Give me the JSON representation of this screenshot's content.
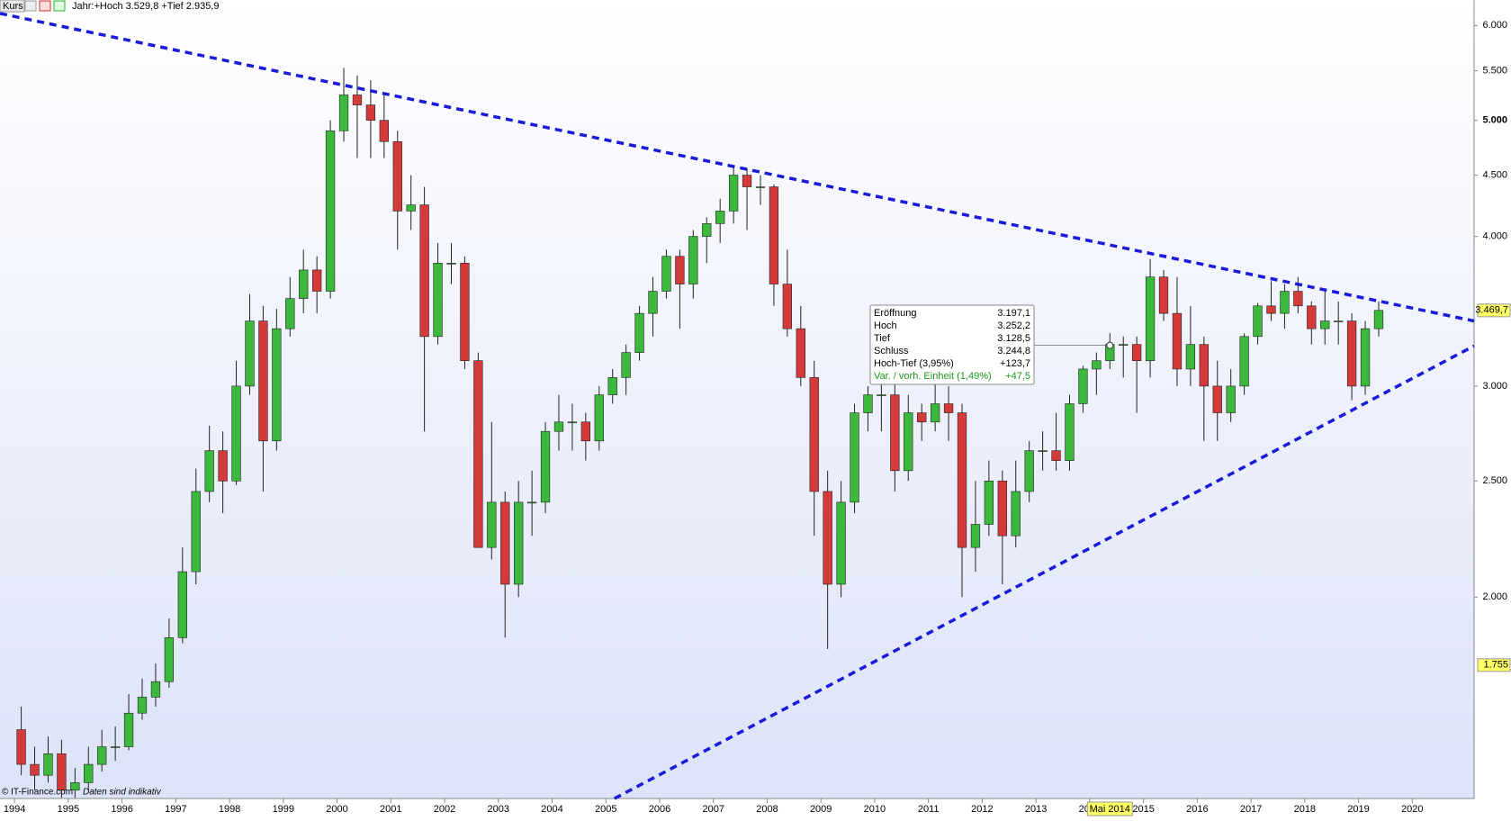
{
  "header": {
    "label": "Kurs",
    "info": "Jahr:+Hoch 3.529,8 +Tief 2.935,9"
  },
  "footer": {
    "copyright": "© IT-Finance.com",
    "note": "Daten sind indikativ"
  },
  "chart_data": {
    "type": "candlestick",
    "log_scale": true,
    "xlim": [
      1993.73,
      2021.15
    ],
    "ylim": [
      1358,
      6301
    ],
    "xticks": [
      1994,
      1995,
      1996,
      1997,
      1998,
      1999,
      2000,
      2001,
      2002,
      2003,
      2004,
      2005,
      2006,
      2007,
      2008,
      2009,
      2010,
      2011,
      2012,
      2013,
      2014,
      2015,
      2016,
      2017,
      2018,
      2019,
      2020
    ],
    "yticks": [
      {
        "value": 2000,
        "label": "2.000"
      },
      {
        "value": 2500,
        "label": "2.500"
      },
      {
        "value": 3000,
        "label": "3.000"
      },
      {
        "value": 4000,
        "label": "4.000"
      },
      {
        "value": 4500,
        "label": "4.500"
      },
      {
        "value": 5000,
        "label": "5.000"
      },
      {
        "value": 5500,
        "label": "5.500"
      },
      {
        "value": 6000,
        "label": "6.000"
      }
    ],
    "up_color": "#3cb83c",
    "down_color": "#d43a3a",
    "x": [
      1994.125,
      1994.375,
      1994.625,
      1994.875,
      1995.125,
      1995.375,
      1995.625,
      1995.875,
      1996.125,
      1996.375,
      1996.625,
      1996.875,
      1997.125,
      1997.375,
      1997.625,
      1997.875,
      1998.125,
      1998.375,
      1998.625,
      1998.875,
      1999.125,
      1999.375,
      1999.625,
      1999.875,
      2000.125,
      2000.375,
      2000.625,
      2000.875,
      2001.125,
      2001.375,
      2001.625,
      2001.875,
      2002.125,
      2002.375,
      2002.625,
      2002.875,
      2003.125,
      2003.375,
      2003.625,
      2003.875,
      2004.125,
      2004.375,
      2004.625,
      2004.875,
      2005.125,
      2005.375,
      2005.625,
      2005.875,
      2006.125,
      2006.375,
      2006.625,
      2006.875,
      2007.125,
      2007.375,
      2007.625,
      2007.875,
      2008.125,
      2008.375,
      2008.625,
      2008.875,
      2009.125,
      2009.375,
      2009.625,
      2009.875,
      2010.125,
      2010.375,
      2010.625,
      2010.875,
      2011.125,
      2011.375,
      2011.625,
      2011.875,
      2012.125,
      2012.375,
      2012.625,
      2012.875,
      2013.125,
      2013.375,
      2013.625,
      2013.875,
      2014.125,
      2014.375,
      2014.625,
      2014.875,
      2015.125,
      2015.375,
      2015.625,
      2015.875,
      2016.125,
      2016.375,
      2016.625,
      2016.875,
      2017.125,
      2017.375,
      2017.625,
      2017.875,
      2018.125,
      2018.375,
      2018.625,
      2018.875,
      2019.125,
      2019.375
    ],
    "open": [
      1550,
      1450,
      1420,
      1480,
      1380,
      1400,
      1450,
      1500,
      1500,
      1600,
      1650,
      1700,
      1850,
      2100,
      2450,
      2650,
      2500,
      3000,
      3400,
      2700,
      3350,
      3550,
      3750,
      3600,
      4900,
      5250,
      5150,
      5000,
      4800,
      4200,
      4250,
      3300,
      3800,
      3800,
      3150,
      2200,
      2400,
      2050,
      2400,
      2400,
      2750,
      2800,
      2800,
      2700,
      2950,
      3050,
      3200,
      3450,
      3600,
      3850,
      3650,
      4000,
      4100,
      4200,
      4500,
      4400,
      4400,
      3650,
      3350,
      3050,
      2450,
      2050,
      2400,
      2850,
      2950,
      2950,
      2550,
      2850,
      2800,
      2900,
      2850,
      2200,
      2300,
      2500,
      2250,
      2450,
      2650,
      2650,
      2600,
      2900,
      3100,
      3150,
      3250,
      3250,
      3150,
      3700,
      3450,
      3100,
      3250,
      3000,
      2850,
      3000,
      3300,
      3500,
      3450,
      3600,
      3500,
      3350,
      3400,
      3400,
      3000,
      3350
    ],
    "high": [
      1620,
      1500,
      1530,
      1520,
      1440,
      1500,
      1550,
      1560,
      1660,
      1710,
      1760,
      1920,
      2200,
      2560,
      2780,
      2750,
      3150,
      3580,
      3500,
      3480,
      3700,
      3900,
      3850,
      5000,
      5530,
      5450,
      5400,
      5250,
      4900,
      4500,
      4400,
      3950,
      3950,
      3850,
      3200,
      2800,
      2450,
      2500,
      2550,
      2800,
      2950,
      2900,
      2850,
      3000,
      3100,
      3250,
      3500,
      3700,
      3900,
      3900,
      4050,
      4150,
      4300,
      4580,
      4560,
      4500,
      4420,
      3900,
      3500,
      3150,
      2550,
      2500,
      2900,
      3000,
      3050,
      3050,
      2950,
      2900,
      3070,
      3000,
      2900,
      2500,
      2600,
      2550,
      2600,
      2700,
      2750,
      2850,
      2950,
      3120,
      3200,
      3320,
      3300,
      3300,
      3830,
      3750,
      3700,
      3500,
      3300,
      3150,
      3100,
      3320,
      3520,
      3670,
      3650,
      3700,
      3530,
      3600,
      3530,
      3450,
      3400,
      3530
    ],
    "low": [
      1420,
      1380,
      1400,
      1360,
      1360,
      1380,
      1430,
      1460,
      1490,
      1580,
      1620,
      1680,
      1830,
      2050,
      2400,
      2350,
      2480,
      2950,
      2450,
      2650,
      3300,
      3450,
      3450,
      3550,
      4800,
      4650,
      4650,
      4650,
      3900,
      4050,
      2750,
      3250,
      3650,
      3100,
      2200,
      2150,
      1850,
      2000,
      2250,
      2350,
      2650,
      2650,
      2600,
      2650,
      2900,
      2950,
      3150,
      3300,
      3550,
      3350,
      3550,
      3800,
      3950,
      4100,
      4050,
      4250,
      3500,
      3300,
      3000,
      2250,
      1810,
      2000,
      2350,
      2750,
      2750,
      2450,
      2500,
      2700,
      2750,
      2700,
      2000,
      2100,
      2250,
      2050,
      2200,
      2400,
      2550,
      2550,
      2550,
      2850,
      2950,
      3100,
      3050,
      2850,
      3050,
      3400,
      3000,
      3000,
      2700,
      2700,
      2800,
      2950,
      3250,
      3400,
      3350,
      3450,
      3250,
      3250,
      3250,
      2920,
      2950,
      3300
    ],
    "close": [
      1450,
      1420,
      1480,
      1380,
      1400,
      1450,
      1500,
      1500,
      1600,
      1650,
      1700,
      1850,
      2100,
      2450,
      2650,
      2500,
      3000,
      3400,
      2700,
      3350,
      3550,
      3750,
      3600,
      4900,
      5250,
      5150,
      5000,
      4800,
      4200,
      4250,
      3300,
      3800,
      3800,
      3150,
      2200,
      2400,
      2050,
      2400,
      2400,
      2750,
      2800,
      2800,
      2700,
      2950,
      3050,
      3200,
      3450,
      3600,
      3850,
      3650,
      4000,
      4100,
      4200,
      4500,
      4400,
      4400,
      3650,
      3350,
      3050,
      2450,
      2050,
      2400,
      2850,
      2950,
      2950,
      2550,
      2850,
      2800,
      2900,
      2850,
      2200,
      2300,
      2500,
      2250,
      2450,
      2650,
      2650,
      2600,
      2900,
      3100,
      3150,
      3250,
      3250,
      3150,
      3700,
      3450,
      3100,
      3250,
      3000,
      2850,
      3000,
      3300,
      3500,
      3450,
      3600,
      3500,
      3350,
      3400,
      3400,
      3000,
      3350,
      3470
    ],
    "trendlines": [
      {
        "color": "#1a1adb",
        "x": [
          1993.73,
          2021.15
        ],
        "values": [
          6140,
          3400
        ]
      },
      {
        "color": "#1a1adb",
        "x": [
          2005.16,
          2021.15
        ],
        "values": [
          1358,
          3241
        ]
      }
    ],
    "markers": [
      {
        "value": 3469.7,
        "label": "3.469,7"
      },
      {
        "value": 1755,
        "label": "1.755"
      }
    ],
    "crosshair": {
      "x": {
        "value": 2014.375,
        "label": "Mai 2014"
      },
      "y": 3244.8
    },
    "tooltip": [
      {
        "label": "Eröffnung",
        "value": "3.197,1"
      },
      {
        "label": "Hoch",
        "value": "3.252,2"
      },
      {
        "label": "Tief",
        "value": "3.128,5"
      },
      {
        "label": "Schluss",
        "value": "3.244,8"
      },
      {
        "label": "Hoch-Tief (3,95%)",
        "value": "+123,7"
      },
      {
        "label": "Var. / vorh. Einheit (1,49%)",
        "value": "+47,5"
      }
    ]
  }
}
